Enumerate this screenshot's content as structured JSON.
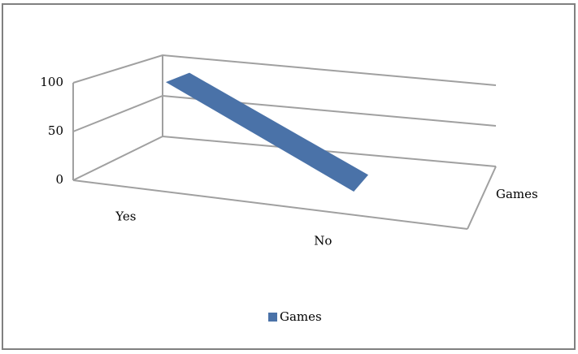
{
  "chart_data": {
    "type": "line3d",
    "categories": [
      "Yes",
      "No"
    ],
    "series": [
      {
        "name": "Games",
        "color": "#4a72a8",
        "values": [
          100,
          5
        ]
      }
    ],
    "ylim": [
      0,
      100
    ],
    "yticks": [
      0,
      50,
      100
    ],
    "grid": true,
    "legend": "bottom"
  }
}
